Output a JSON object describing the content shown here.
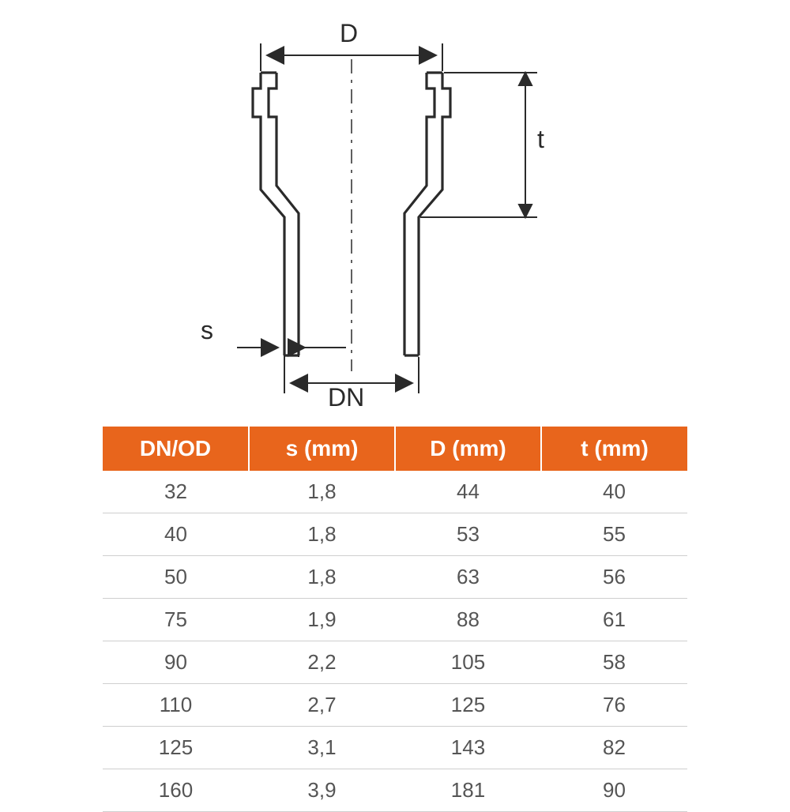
{
  "diagram": {
    "labels": {
      "D": "D",
      "t": "t",
      "s": "s",
      "DN": "DN"
    },
    "stroke_color": "#2a2a2a",
    "stroke_width": 3,
    "thin_stroke_width": 1.5,
    "dash_pattern": "18 8 4 8"
  },
  "table": {
    "header_bg": "#e8651c",
    "header_fg": "#ffffff",
    "cell_fg": "#555555",
    "border_color": "#cfcfcf",
    "header_fontsize": 28,
    "cell_fontsize": 26,
    "columns": [
      "DN/OD",
      "s (mm)",
      "D (mm)",
      "t (mm)"
    ],
    "rows": [
      [
        "32",
        "1,8",
        "44",
        "40"
      ],
      [
        "40",
        "1,8",
        "53",
        "55"
      ],
      [
        "50",
        "1,8",
        "63",
        "56"
      ],
      [
        "75",
        "1,9",
        "88",
        "61"
      ],
      [
        "90",
        "2,2",
        "105",
        "58"
      ],
      [
        "110",
        "2,7",
        "125",
        "76"
      ],
      [
        "125",
        "3,1",
        "143",
        "82"
      ],
      [
        "160",
        "3,9",
        "181",
        "90"
      ]
    ]
  }
}
